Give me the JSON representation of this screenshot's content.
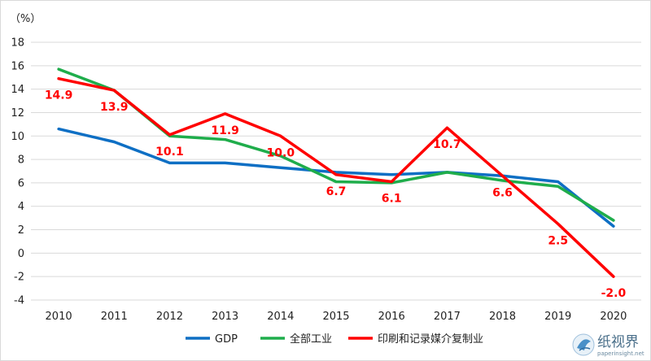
{
  "chart_data": {
    "type": "line",
    "title": "",
    "unit_label": "（%）",
    "categories": [
      "2010",
      "2011",
      "2012",
      "2013",
      "2014",
      "2015",
      "2016",
      "2017",
      "2018",
      "2019",
      "2020"
    ],
    "ylim": [
      -4,
      18
    ],
    "yticks": [
      -4,
      -2,
      0,
      2,
      4,
      6,
      8,
      10,
      12,
      14,
      16,
      18
    ],
    "grid": true,
    "legend_position": "bottom",
    "series": [
      {
        "name": "GDP",
        "color": "#0e6fc4",
        "values": [
          10.6,
          9.5,
          7.7,
          7.7,
          7.3,
          6.9,
          6.7,
          6.9,
          6.6,
          6.1,
          2.3
        ]
      },
      {
        "name": "全部工业",
        "color": "#1fad4b",
        "values": [
          15.7,
          13.9,
          10.0,
          9.7,
          8.3,
          6.1,
          6.0,
          6.9,
          6.2,
          5.7,
          2.8
        ]
      },
      {
        "name": "印刷和记录媒介复制业",
        "color": "#ff0000",
        "values": [
          14.9,
          13.9,
          10.1,
          11.9,
          10.0,
          6.7,
          6.1,
          10.7,
          6.6,
          2.5,
          -2.0
        ]
      }
    ],
    "data_labels": {
      "series": "印刷和记录媒介复制业",
      "color": "#ff0000",
      "texts": [
        "14.9",
        "13.9",
        "10.1",
        "11.9",
        "10.0",
        "6.7",
        "6.1",
        "10.7",
        "6.6",
        "2.5",
        "-2.0"
      ]
    }
  },
  "logo": {
    "main": "纸视界",
    "sub": "paperinsight.net"
  }
}
